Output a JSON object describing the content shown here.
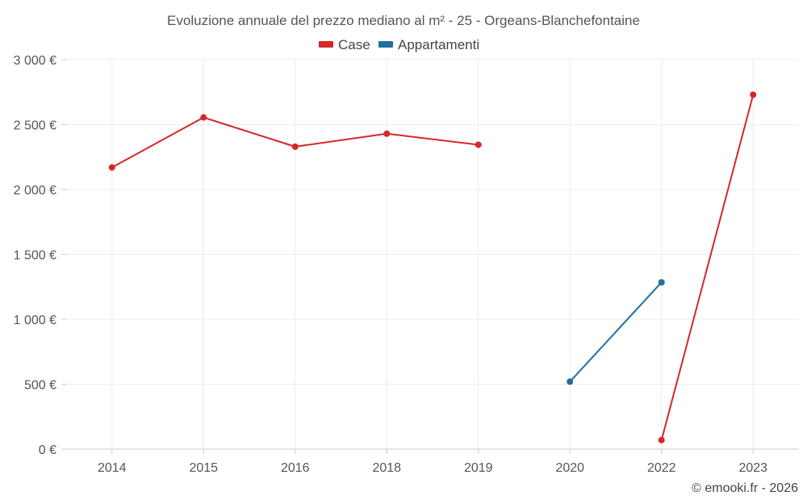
{
  "chart_data": {
    "type": "line",
    "title": "Evoluzione annuale del prezzo mediano al m² - 25 - Orgeans-Blanchefontaine",
    "categories": [
      "2014",
      "2015",
      "2016",
      "2018",
      "2019",
      "2020",
      "2022",
      "2023"
    ],
    "ylim": [
      0,
      3000
    ],
    "y_ticks": [
      0,
      500,
      1000,
      1500,
      2000,
      2500,
      3000
    ],
    "y_tick_labels": [
      "0 €",
      "500 €",
      "1 000 €",
      "1 500 €",
      "2 000 €",
      "2 500 €",
      "3 000 €"
    ],
    "grid": true,
    "legend_position": "top-center",
    "series": [
      {
        "name": "Case",
        "color": "#d62728",
        "values": [
          2170,
          2555,
          2330,
          2430,
          2345,
          null,
          70,
          2730
        ]
      },
      {
        "name": "Appartamenti",
        "color": "#1f6ea0",
        "values": [
          null,
          null,
          null,
          null,
          null,
          520,
          1285,
          null
        ]
      }
    ]
  },
  "credit": "© emooki.fr - 2026"
}
